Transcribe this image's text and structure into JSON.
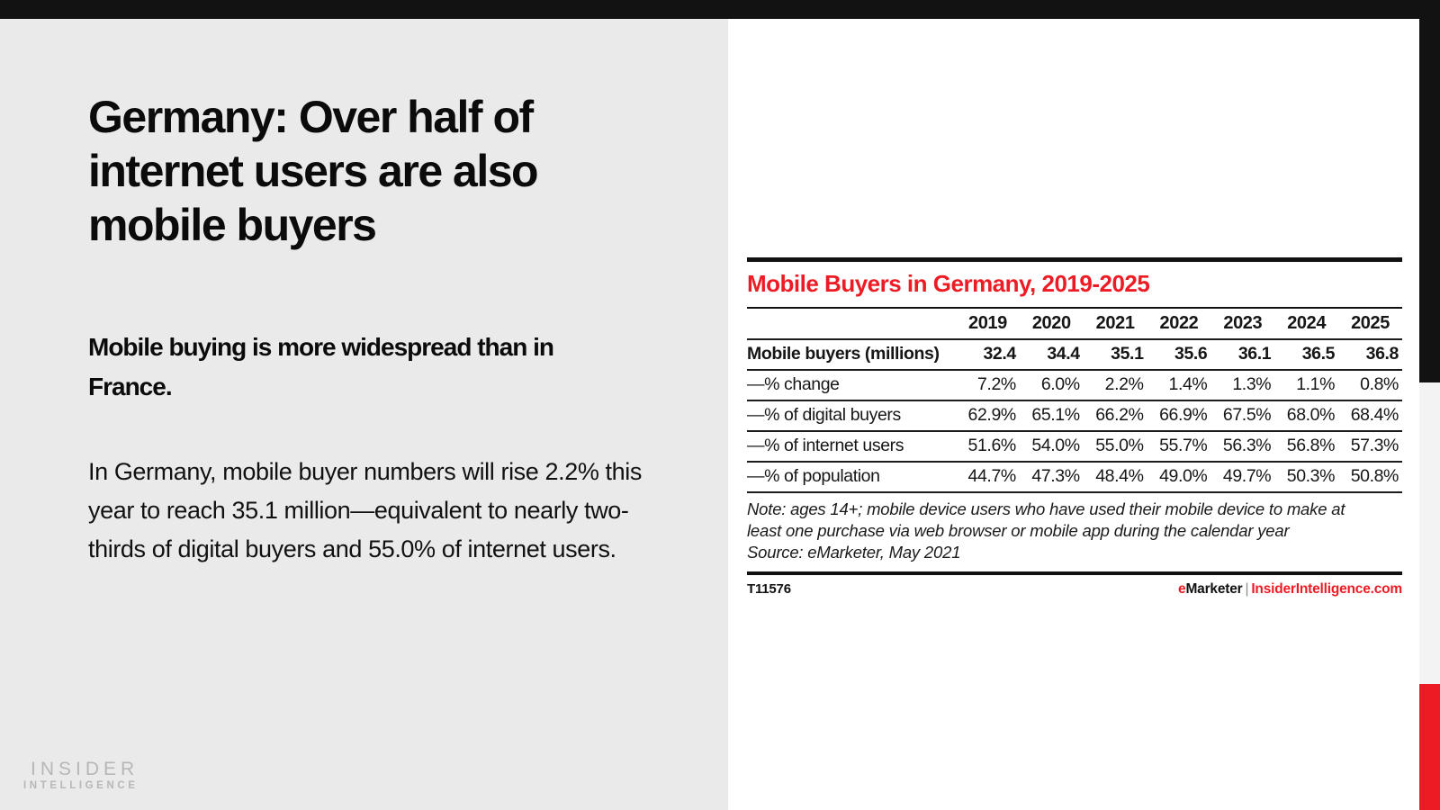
{
  "colors": {
    "accent_red": "#ed1c24",
    "bar_black": "#121212",
    "panel_gray": "#eaeaea",
    "strip_gray": "#f3f3f3",
    "logo_gray": "#b7b7b7"
  },
  "slide": {
    "title": "Germany: Over half of internet users are also mobile buyers",
    "subtitle": "Mobile buying is more widespread than in France.",
    "body": "In Germany, mobile buyer numbers will rise 2.2% this year to reach 35.1 million—equivalent to nearly two-thirds of digital buyers and 55.0% of internet users.",
    "logo_line1": "INSIDER",
    "logo_line2": "INTELLIGENCE"
  },
  "chart_data": {
    "type": "table",
    "title": "Mobile Buyers in Germany, 2019-2025",
    "columns": [
      "2019",
      "2020",
      "2021",
      "2022",
      "2023",
      "2024",
      "2025"
    ],
    "rows": [
      {
        "label": "Mobile buyers (millions)",
        "bold": true,
        "values": [
          "32.4",
          "34.4",
          "35.1",
          "35.6",
          "36.1",
          "36.5",
          "36.8"
        ]
      },
      {
        "label": "—% change",
        "bold": false,
        "values": [
          "7.2%",
          "6.0%",
          "2.2%",
          "1.4%",
          "1.3%",
          "1.1%",
          "0.8%"
        ]
      },
      {
        "label": "—% of digital buyers",
        "bold": false,
        "values": [
          "62.9%",
          "65.1%",
          "66.2%",
          "66.9%",
          "67.5%",
          "68.0%",
          "68.4%"
        ]
      },
      {
        "label": "—% of internet users",
        "bold": false,
        "values": [
          "51.6%",
          "54.0%",
          "55.0%",
          "55.7%",
          "56.3%",
          "56.8%",
          "57.3%"
        ]
      },
      {
        "label": "—% of population",
        "bold": false,
        "values": [
          "44.7%",
          "47.3%",
          "48.4%",
          "49.0%",
          "49.7%",
          "50.3%",
          "50.8%"
        ]
      }
    ],
    "note": "Note: ages 14+; mobile device users who have used their mobile device to make at least one purchase via web browser or mobile app during the calendar year",
    "source": "Source: eMarketer, May 2021",
    "footer_id": "T11576",
    "brand": {
      "e": "e",
      "marketer": "Marketer",
      "separator": "|",
      "site": "InsiderIntelligence.com"
    }
  }
}
